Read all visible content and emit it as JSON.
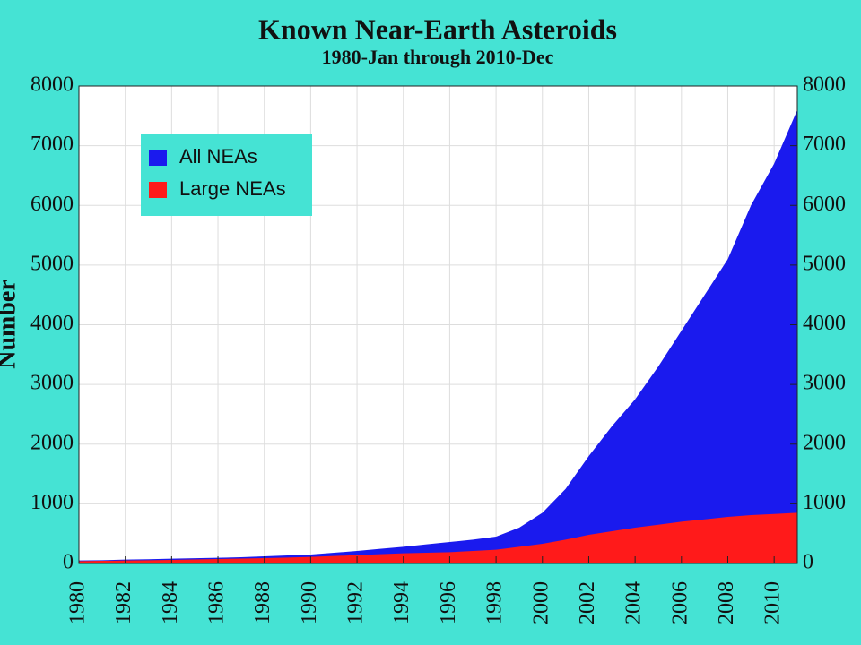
{
  "chart_data": {
    "type": "area",
    "title": "Known Near-Earth Asteroids",
    "subtitle": "1980-Jan through 2010-Dec",
    "y_label": "Number",
    "x": [
      1980,
      1981,
      1982,
      1983,
      1984,
      1985,
      1986,
      1987,
      1988,
      1989,
      1990,
      1991,
      1992,
      1993,
      1994,
      1995,
      1996,
      1997,
      1998,
      1999,
      2000,
      2001,
      2002,
      2003,
      2004,
      2005,
      2006,
      2007,
      2008,
      2009,
      2010,
      2011
    ],
    "series": [
      {
        "name": "All NEAs",
        "color": "#1a1aee",
        "values": [
          50,
          55,
          65,
          72,
          80,
          88,
          95,
          105,
          120,
          135,
          150,
          180,
          210,
          245,
          280,
          320,
          360,
          400,
          450,
          600,
          850,
          1250,
          1800,
          2300,
          2750,
          3300,
          3900,
          4500,
          5100,
          6000,
          6700,
          7600
        ]
      },
      {
        "name": "Large NEAs",
        "color": "#ff1a1a",
        "values": [
          40,
          45,
          50,
          55,
          60,
          68,
          75,
          82,
          90,
          100,
          110,
          125,
          140,
          155,
          170,
          180,
          190,
          210,
          230,
          280,
          330,
          400,
          480,
          540,
          600,
          650,
          700,
          740,
          780,
          810,
          830,
          850
        ]
      }
    ],
    "xlim": [
      1980,
      2011
    ],
    "ylim": [
      0,
      8000
    ],
    "xticks": [
      1980,
      1982,
      1984,
      1986,
      1988,
      1990,
      1992,
      1994,
      1996,
      1998,
      2000,
      2002,
      2004,
      2006,
      2008,
      2010
    ],
    "yticks": [
      0,
      1000,
      2000,
      3000,
      4000,
      5000,
      6000,
      7000,
      8000
    ],
    "grid": true,
    "legend": "upper left"
  }
}
